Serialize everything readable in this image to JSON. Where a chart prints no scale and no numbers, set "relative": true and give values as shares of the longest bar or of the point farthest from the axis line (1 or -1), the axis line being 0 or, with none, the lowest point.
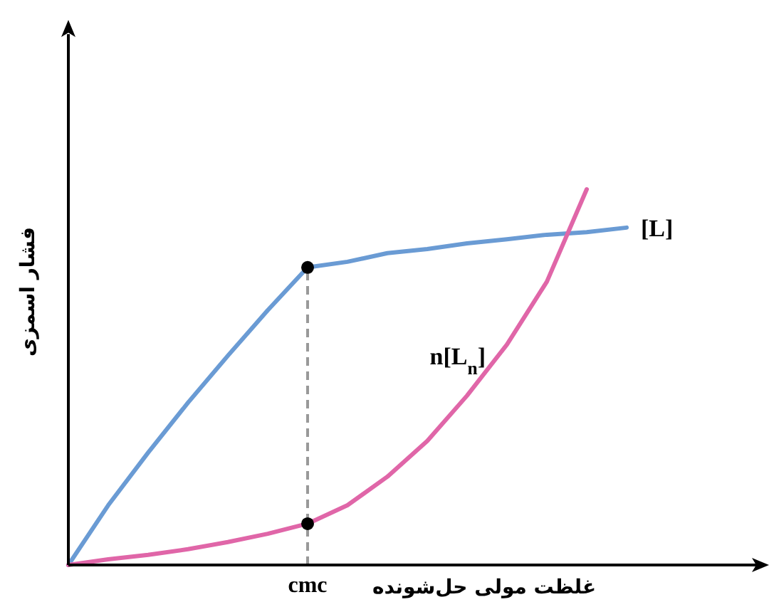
{
  "chart_data": {
    "type": "line",
    "relative": true,
    "xlabel": "غلظت مولی حل‌شونده",
    "ylabel": "فشار اسمزی",
    "categories": [
      null,
      null,
      null,
      null,
      null,
      null,
      null,
      null,
      null,
      null,
      null,
      null,
      null,
      null,
      null
    ],
    "series": [
      {
        "name": "[L]",
        "color": "#6a9bd4",
        "values": [
          0,
          0.159,
          0.299,
          0.432,
          0.557,
          0.678,
          0.792,
          0.807,
          0.83,
          0.841,
          0.856,
          0.867,
          0.879,
          0.886,
          0.898
        ]
      },
      {
        "name": "n[L$_{n}$]",
        "color": "#e066a8",
        "values": [
          0,
          0.015,
          0.027,
          0.042,
          0.061,
          0.083,
          0.11,
          0.159,
          0.235,
          0.33,
          0.451,
          0.587,
          0.754,
          1,
          null
        ]
      }
    ],
    "annotations": [
      "cmc"
    ]
  }
}
